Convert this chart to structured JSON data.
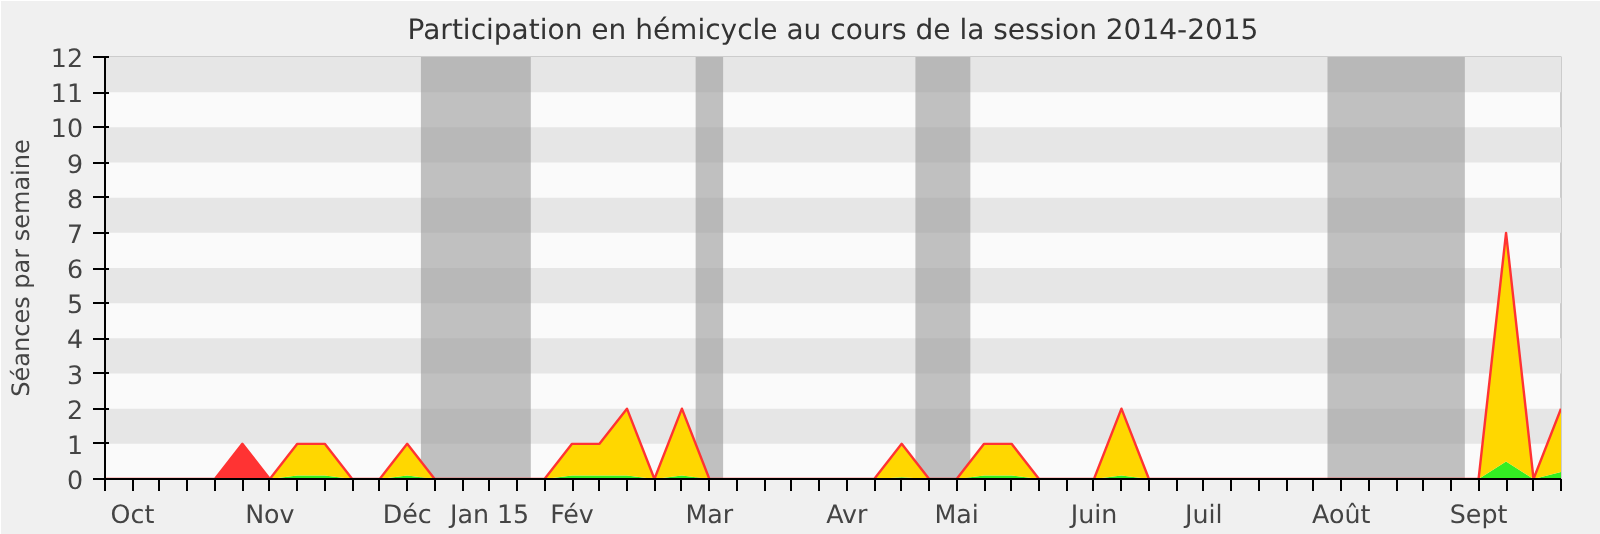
{
  "chart_data": {
    "type": "area",
    "title": "Participation en hémicycle au cours de la session 2014-2015",
    "ylabel": "Séances par semaine",
    "categories": [
      null,
      "Oct",
      null,
      null,
      null,
      null,
      "Nov",
      null,
      null,
      null,
      null,
      "Déc",
      null,
      null,
      "Jan 15",
      null,
      null,
      "Fév",
      null,
      null,
      null,
      null,
      "Mar",
      null,
      null,
      null,
      null,
      "Avr",
      null,
      null,
      null,
      "Mai",
      null,
      null,
      null,
      null,
      "Juin",
      null,
      null,
      null,
      "Juil",
      null,
      null,
      null,
      null,
      "Août",
      null,
      null,
      null,
      null,
      "Sept",
      null,
      null,
      null
    ],
    "stacked": true,
    "series": [
      {
        "color": "#33ee22",
        "values": [
          0,
          0,
          0,
          0,
          0,
          0,
          0,
          0.1,
          0.1,
          0,
          0,
          0.1,
          0,
          0,
          0,
          0,
          0,
          0.1,
          0.1,
          0.1,
          0,
          0.1,
          0,
          0,
          0,
          0,
          0,
          0,
          0,
          0.05,
          0,
          0,
          0.1,
          0.1,
          0,
          0,
          0,
          0.1,
          0,
          0,
          0,
          0,
          0,
          0,
          0,
          0,
          0,
          0,
          0,
          0,
          0,
          0.5,
          0,
          0.2
        ]
      },
      {
        "color": "#ffd700",
        "values": [
          0,
          0,
          0,
          0,
          0,
          0,
          0,
          0.9,
          0.9,
          0,
          0,
          0.9,
          0,
          0,
          0,
          0,
          0,
          0.9,
          0.9,
          1.9,
          0,
          1.9,
          0,
          0,
          0,
          0,
          0,
          0,
          0,
          0.95,
          0,
          0,
          0.9,
          0.9,
          0,
          0,
          0,
          1.9,
          0,
          0,
          0,
          0,
          0,
          0,
          0,
          0,
          0,
          0,
          0,
          0,
          0,
          6.5,
          0,
          1.8
        ]
      },
      {
        "color": "#ff3333",
        "values": [
          null,
          null,
          null,
          null,
          0,
          1,
          0,
          null,
          null,
          null,
          null,
          null,
          null,
          null,
          null,
          null,
          null,
          null,
          null,
          null,
          null,
          null,
          null,
          null,
          null,
          null,
          null,
          null,
          null,
          null,
          null,
          null,
          null,
          null,
          null,
          null,
          null,
          null,
          null,
          null,
          null,
          null,
          null,
          null,
          null,
          null,
          null,
          null,
          null,
          null,
          null,
          null,
          null,
          null
        ]
      }
    ],
    "ylim": [
      0,
      12
    ],
    "yticks": [
      0,
      1,
      2,
      3,
      4,
      5,
      6,
      7,
      8,
      9,
      10,
      11,
      12
    ]
  }
}
